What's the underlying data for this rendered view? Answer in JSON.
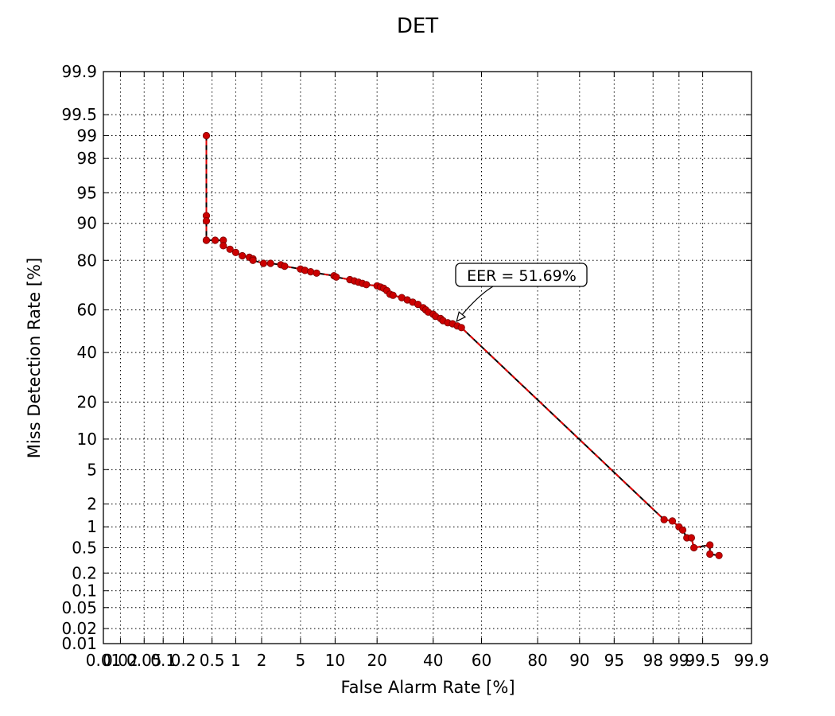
{
  "chart_data": {
    "type": "line",
    "scale": "normal-deviate (probit) on both axes",
    "title": "DET",
    "xlabel": "False Alarm Rate [%]",
    "ylabel": "Miss Detection Rate [%]",
    "xlim": [
      0.01,
      99.9
    ],
    "ylim": [
      0.01,
      99.9
    ],
    "grid": true,
    "x_ticks": [
      "0.01",
      "0.02",
      "0.05",
      "0.1",
      "0.2",
      "0.5",
      "1",
      "2",
      "5",
      "10",
      "20",
      "40",
      "60",
      "80",
      "90",
      "95",
      "98",
      "99",
      "99.5",
      "99.9"
    ],
    "y_ticks": [
      "0.01",
      "0.02",
      "0.05",
      "0.1",
      "0.2",
      "0.5",
      "1",
      "2",
      "5",
      "10",
      "20",
      "40",
      "60",
      "80",
      "90",
      "95",
      "98",
      "99",
      "99.5",
      "99.9"
    ],
    "annotation": {
      "text": "EER = 51.69%",
      "x": 51.69,
      "y": 51.69
    },
    "series": [
      {
        "line_color": "#000000",
        "dash_color": "#e00000",
        "marker_color": "#cc0000",
        "x": [
          0.42,
          0.42,
          0.42,
          0.42,
          0.42,
          0.55,
          0.7,
          0.7,
          0.85,
          1.0,
          1.2,
          1.45,
          1.6,
          1.6,
          2.1,
          2.5,
          3.2,
          3.5,
          5.0,
          5.5,
          6.2,
          7.0,
          9.8,
          10.2,
          13.0,
          14.0,
          15.0,
          16.0,
          17.0,
          20.0,
          21.0,
          22.0,
          23.0,
          24.0,
          25.0,
          28.0,
          30.0,
          32.0,
          34.0,
          36.0,
          37.0,
          38.0,
          40.0,
          41.0,
          43.0,
          44.0,
          46.0,
          48.0,
          50.0,
          51.69,
          98.5,
          98.8,
          99.0,
          99.1,
          99.2,
          99.3,
          99.35,
          99.6,
          99.6,
          99.7
        ],
        "y": [
          99.0,
          91.5,
          90.5,
          86.0,
          86.0,
          86.0,
          86.0,
          84.5,
          83.5,
          82.5,
          81.5,
          81.0,
          80.5,
          80.0,
          79.0,
          79.0,
          78.5,
          78.0,
          77.0,
          76.5,
          76.0,
          75.5,
          74.5,
          74.0,
          73.0,
          72.5,
          72.0,
          71.5,
          71.0,
          70.5,
          70.0,
          69.5,
          68.5,
          67.0,
          66.5,
          65.5,
          64.5,
          63.5,
          62.5,
          61.0,
          60.0,
          59.0,
          58.0,
          57.0,
          56.0,
          55.0,
          54.0,
          53.5,
          52.5,
          51.69,
          1.25,
          1.2,
          1.0,
          0.9,
          0.7,
          0.7,
          0.5,
          0.55,
          0.4,
          0.38
        ]
      }
    ]
  }
}
